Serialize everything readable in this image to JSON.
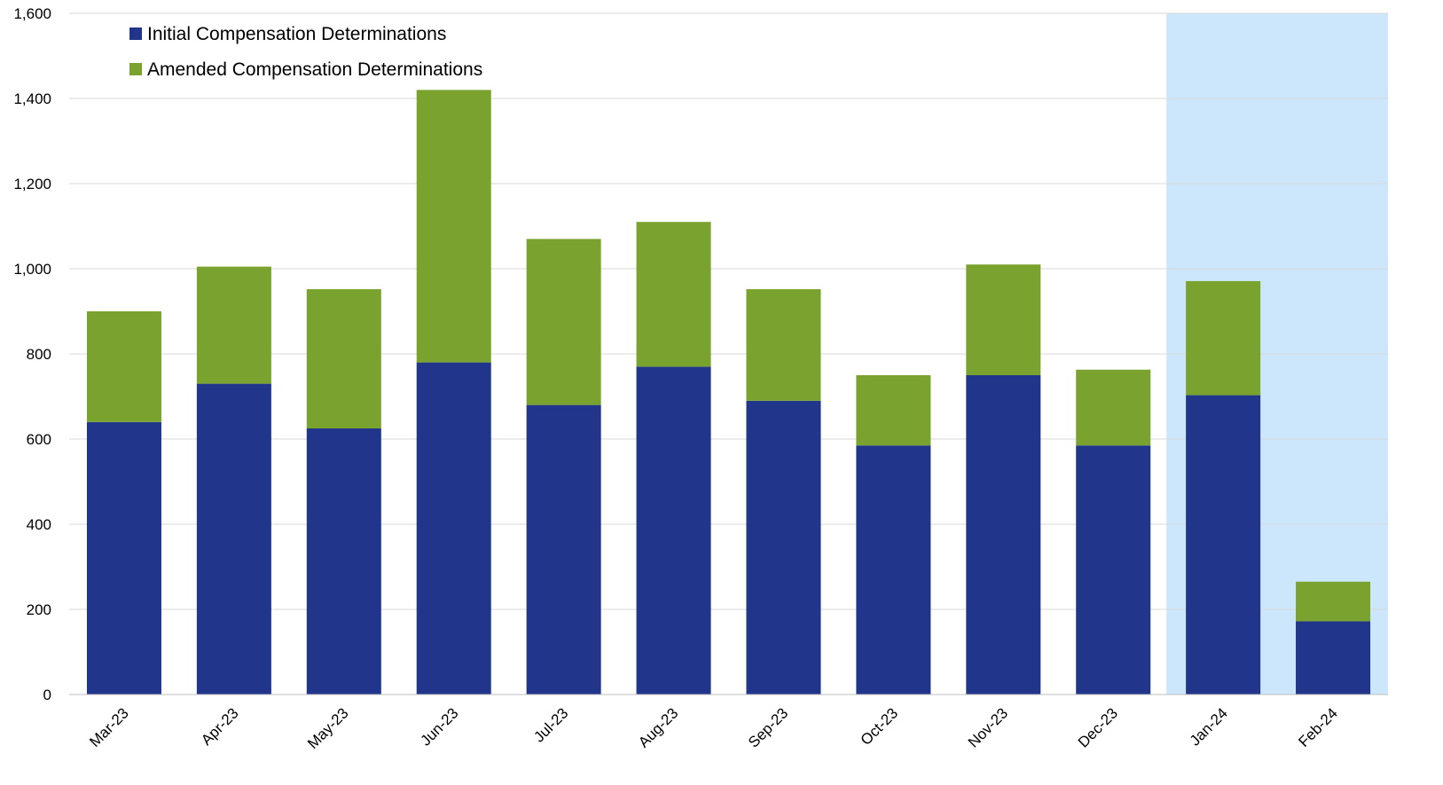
{
  "chart_data": {
    "type": "bar",
    "stacked": true,
    "categories": [
      "Mar-23",
      "Apr-23",
      "May-23",
      "Jun-23",
      "Jul-23",
      "Aug-23",
      "Sep-23",
      "Oct-23",
      "Nov-23",
      "Dec-23",
      "Jan-24",
      "Feb-24"
    ],
    "series": [
      {
        "name": "Initial Compensation Determinations",
        "color": "#21368a",
        "values": [
          640,
          730,
          625,
          780,
          680,
          770,
          690,
          585,
          750,
          585,
          703,
          172
        ]
      },
      {
        "name": "Amended Compensation Determinations",
        "color": "#7aa22f",
        "values": [
          260,
          275,
          327,
          640,
          390,
          340,
          262,
          165,
          260,
          178,
          268,
          93
        ]
      }
    ],
    "ylim": [
      0,
      1600
    ],
    "yticks": [
      0,
      200,
      400,
      600,
      800,
      1000,
      1200,
      1400,
      1600
    ],
    "ytick_labels": [
      "0",
      "200",
      "400",
      "600",
      "800",
      "1,000",
      "1,200",
      "1,400",
      "1,600"
    ],
    "grid": true,
    "legend_position": "top-left",
    "highlight": {
      "categories": [
        "Jan-24",
        "Feb-24"
      ],
      "color": "#cce7fb"
    },
    "title": "",
    "xlabel": "",
    "ylabel": ""
  }
}
